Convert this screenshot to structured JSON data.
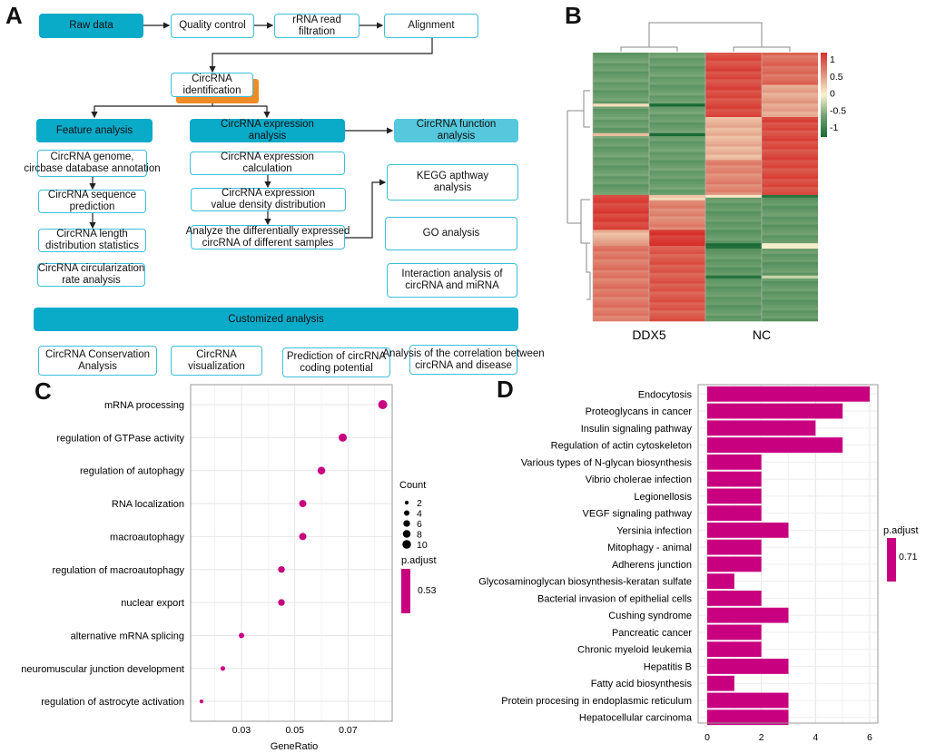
{
  "panels": {
    "a": "A",
    "b": "B",
    "c": "C",
    "d": "D"
  },
  "flowchart": {
    "raw_data": "Raw data",
    "quality_control": "Quality control",
    "rrna_filtration": "rRNA read\nfiltration",
    "alignment": "Alignment",
    "identification": "CircRNA\nidentification",
    "feature_analysis": "Feature analysis",
    "expression_analysis": "CircRNA expression\nanalysis",
    "function_analysis": "CircRNA function\nanalysis",
    "genome_annotation": "CircRNA genome,\ncircbase database annotation",
    "sequence_prediction": "CircRNA sequence\nprediction",
    "length_distribution": "CircRNA length\ndistribution statistics",
    "circularization": "CircRNA circularization\nrate analysis",
    "expression_calculation": "CircRNA expression\ncalculation",
    "density_distribution": "CircRNA expression\nvalue density distribution",
    "differential": "Analyze the differentially expressed\ncircRNA of different samples",
    "kegg": "KEGG apthway\nanalysis",
    "go": "GO analysis",
    "interaction": "Interaction analysis of\ncircRNA and miRNA",
    "customized": "Customized analysis",
    "conservation": "CircRNA Conservation\nAnalysis",
    "visualization": "CircRNA\nvisualization",
    "coding_potential": "Prediction of circRNA\ncoding potential",
    "disease_correlation": "Analysis of the correlation between\ncircRNA and disease"
  },
  "colors": {
    "fill": "#0aaac9",
    "light": "#56c8dd",
    "border": "#3cbfd9",
    "orange": "#f08a24",
    "magenta": "#c8007f"
  },
  "chart_data": [
    {
      "type": "heatmap",
      "columns": [
        "DDX5",
        "DDX5",
        "NC",
        "NC"
      ],
      "column_groups": [
        "DDX5",
        "NC"
      ],
      "row_count": 100,
      "colorbar": {
        "ticks": [
          "1",
          "0.5",
          "0",
          "-0.5",
          "-1"
        ],
        "range": [
          -1,
          1
        ],
        "colors": [
          "#1a6b35",
          "#72a272",
          "#fbf3cf",
          "#e0907a",
          "#d7302a"
        ]
      },
      "blocks": [
        [
          [
            0,
            53,
            -0.55
          ],
          [
            19,
            20,
            0.1
          ],
          [
            30,
            31,
            0.25
          ],
          [
            53,
            66,
            0.9
          ],
          [
            66,
            70,
            0.3
          ],
          [
            70,
            72,
            0.5
          ],
          [
            72,
            100,
            0.62
          ]
        ],
        [
          [
            0,
            53,
            -0.55
          ],
          [
            19,
            20,
            -1
          ],
          [
            30,
            31,
            -1
          ],
          [
            53,
            55,
            0.2
          ],
          [
            55,
            66,
            0.55
          ],
          [
            66,
            72,
            0.95
          ],
          [
            72,
            100,
            0.78
          ]
        ],
        [
          [
            0,
            24,
            0.85
          ],
          [
            24,
            40,
            0.32
          ],
          [
            40,
            53,
            0.55
          ],
          [
            53,
            54,
            0.08
          ],
          [
            54,
            71,
            -0.58
          ],
          [
            71,
            73,
            -1
          ],
          [
            73,
            100,
            -0.58
          ],
          [
            83,
            84,
            -1
          ]
        ],
        [
          [
            0,
            12,
            0.68
          ],
          [
            12,
            24,
            0.4
          ],
          [
            24,
            53,
            0.85
          ],
          [
            53,
            54,
            -1
          ],
          [
            54,
            71,
            -0.58
          ],
          [
            71,
            73,
            0.05
          ],
          [
            73,
            100,
            -0.58
          ],
          [
            83,
            84,
            -0.2
          ]
        ]
      ]
    },
    {
      "type": "scatter",
      "categories": [
        "mRNA processing",
        "regulation of GTPase activity",
        "regulation of autophagy",
        "RNA localization",
        "macroautophagy",
        "regulation of macroautophagy",
        "nuclear export",
        "alternative mRNA splicing",
        "neuromuscular junction development",
        "regulation of astrocyte activation"
      ],
      "gene_ratio": [
        0.083,
        0.068,
        0.06,
        0.053,
        0.053,
        0.045,
        0.045,
        0.03,
        0.023,
        0.015
      ],
      "count": [
        11,
        9,
        8,
        7,
        7,
        6,
        6,
        4,
        3,
        2
      ],
      "xlabel": "GeneRatio",
      "xticks": [
        "0.03",
        "0.05",
        "0.07"
      ],
      "xtick_values": [
        0.03,
        0.05,
        0.07
      ],
      "xlim": [
        0.011,
        0.0868
      ],
      "legend": {
        "size_title": "Count",
        "size_values": [
          "2",
          "4",
          "6",
          "8",
          "10"
        ],
        "color_title": "p.adjust",
        "color_value": "0.53"
      },
      "color": "#c8007f"
    },
    {
      "type": "bar",
      "orientation": "horizontal",
      "categories": [
        "Endocytosis",
        "Proteoglycans in cancer",
        "Insulin signaling pathway",
        "Regulation of actin cytoskeleton",
        "Various types of N-glycan biosynthesis",
        "Vibrio cholerae infection",
        "Legionellosis",
        "VEGF signaling pathway",
        "Yersinia infection",
        "Mitophagy - animal",
        "Adherens junction",
        "Glycosaminoglycan biosynthesis-keratan sulfate",
        "Bacterial invasion of epithelial cells",
        "Cushing syndrome",
        "Pancreatic cancer",
        "Chronic myeloid leukemia",
        "Hepatitis B",
        "Fatty acid biosynthesis",
        "Protein procesing in endoplasmic reticulum",
        "Hepatocellular carcinoma"
      ],
      "values": [
        6,
        5,
        4,
        5,
        2,
        2,
        2,
        2,
        3,
        2,
        2,
        1,
        2,
        3,
        2,
        2,
        3,
        1,
        3,
        3
      ],
      "xticks": [
        "0",
        "2",
        "4",
        "6"
      ],
      "xtick_values": [
        0,
        2,
        4,
        6
      ],
      "xlim": [
        -0.33,
        6.3
      ],
      "legend": {
        "color_title": "p.adjust",
        "color_value": "0.71"
      },
      "color": "#c8007f"
    }
  ]
}
